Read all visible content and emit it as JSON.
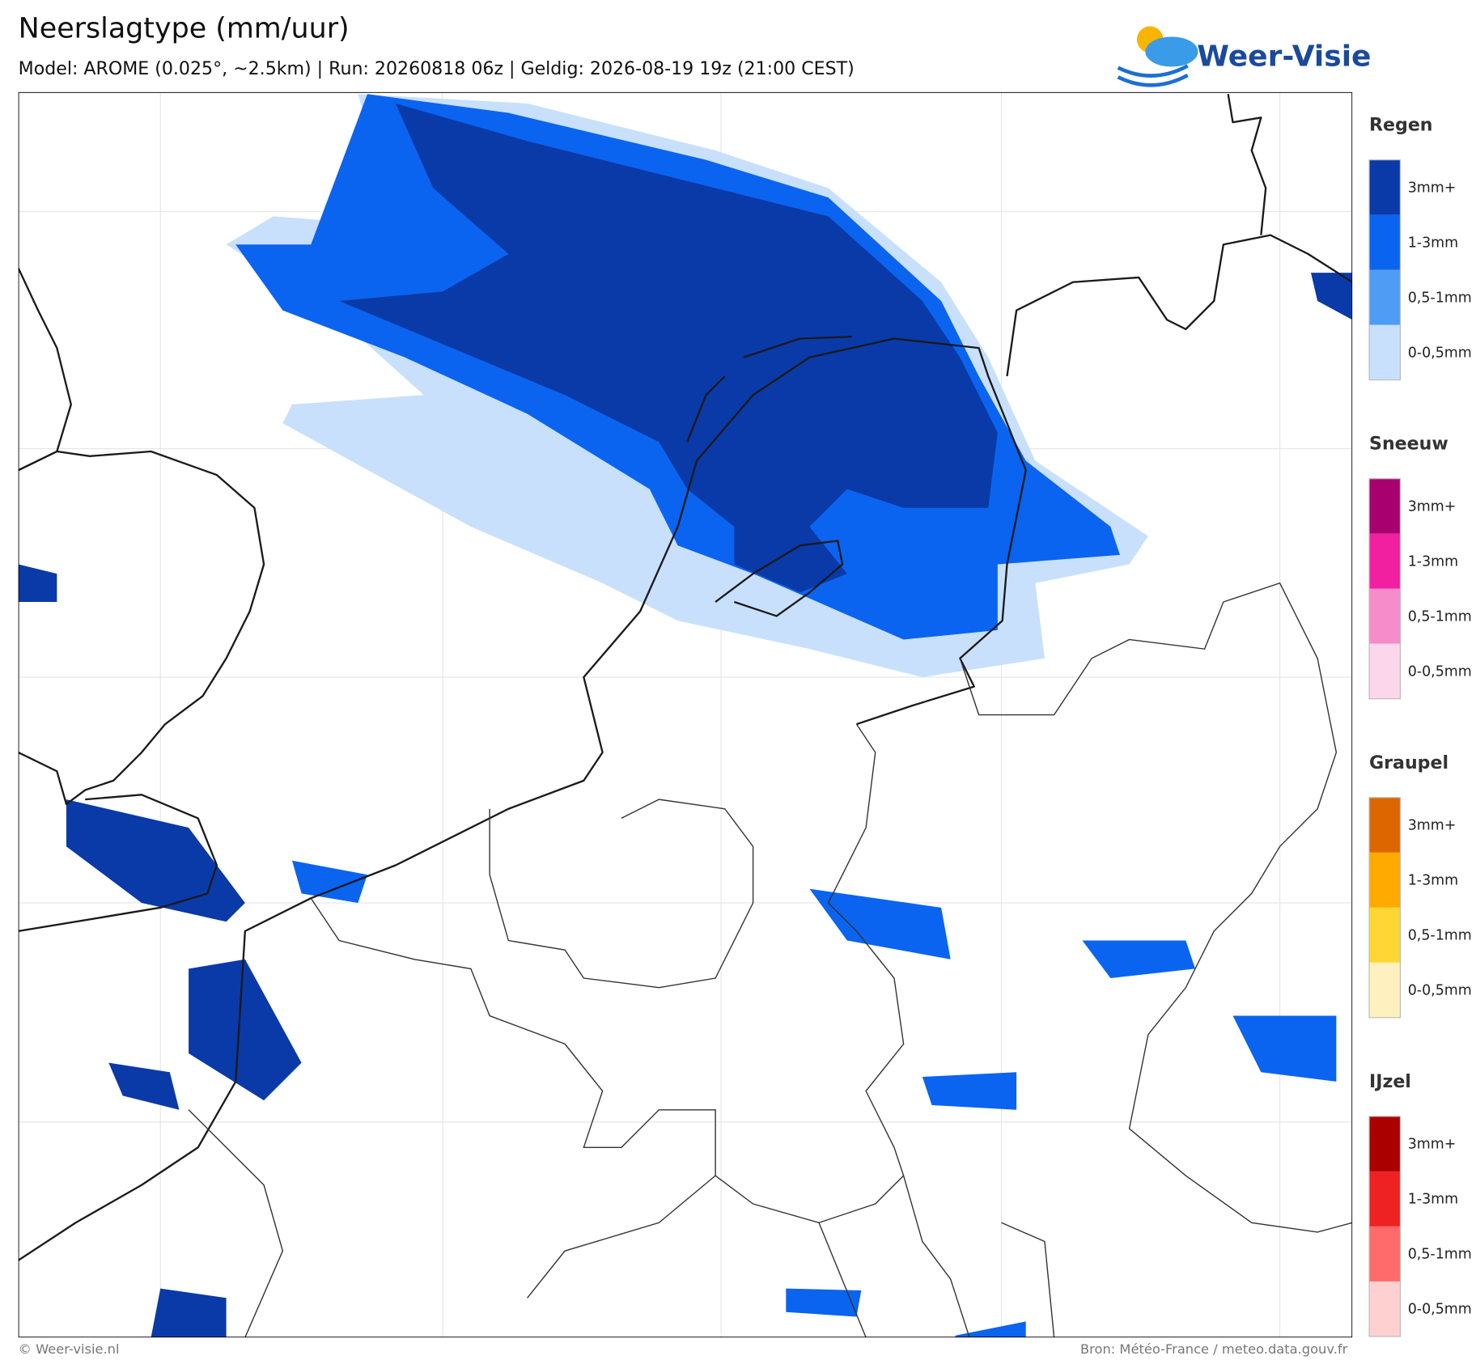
{
  "header": {
    "title": "Neerslagtype (mm/uur)",
    "subtitle": "Model: AROME (0.025°, ~2.5km)  |  Run: 20260818 06z  |  Geldig: 2026-08-19 19z (21:00 CEST)",
    "logo": "Weer-Visie"
  },
  "legend": [
    {
      "name": "Regen",
      "items": [
        {
          "label": "3mm+",
          "color": "#0a3aa8"
        },
        {
          "label": "1-3mm",
          "color": "#0a64f0"
        },
        {
          "label": "0,5-1mm",
          "color": "#4f9cf5"
        },
        {
          "label": "0-0,5mm",
          "color": "#c8e0fb"
        }
      ]
    },
    {
      "name": "Sneeuw",
      "items": [
        {
          "label": "3mm+",
          "color": "#a8006e"
        },
        {
          "label": "1-3mm",
          "color": "#f020a0"
        },
        {
          "label": "0,5-1mm",
          "color": "#f78ccb"
        },
        {
          "label": "0-0,5mm",
          "color": "#fcd6ea"
        }
      ]
    },
    {
      "name": "Graupel",
      "items": [
        {
          "label": "3mm+",
          "color": "#dd6600"
        },
        {
          "label": "1-3mm",
          "color": "#ffaa00"
        },
        {
          "label": "0,5-1mm",
          "color": "#ffd633"
        },
        {
          "label": "0-0,5mm",
          "color": "#fff0c0"
        }
      ]
    },
    {
      "name": "IJzel",
      "items": [
        {
          "label": "3mm+",
          "color": "#aa0000"
        },
        {
          "label": "1-3mm",
          "color": "#ee2222"
        },
        {
          "label": "0,5-1mm",
          "color": "#ff6b6b"
        },
        {
          "label": "0-0,5mm",
          "color": "#ffd0d0"
        }
      ]
    }
  ],
  "footer": {
    "left": "© Weer-visie.nl",
    "right": "Bron: Météo-France / meteo.data.gouv.fr"
  }
}
